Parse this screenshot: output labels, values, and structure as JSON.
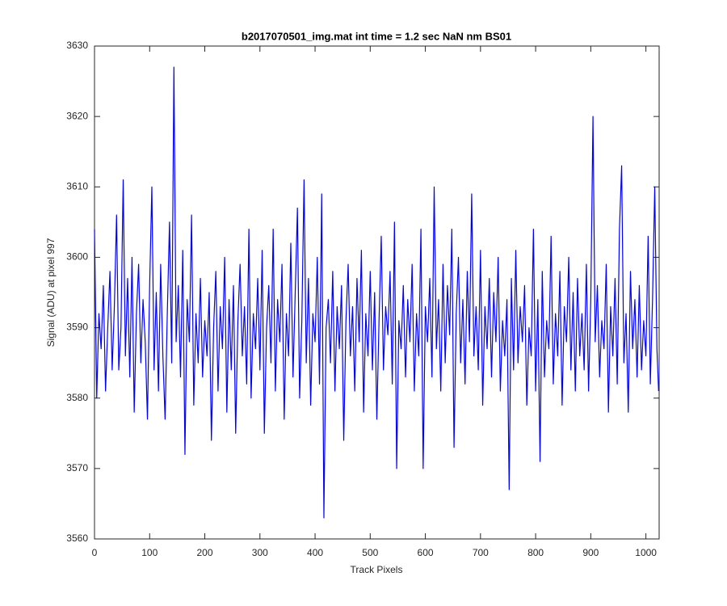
{
  "chart_data": {
    "type": "line",
    "title": "b2017070501_img.mat int time = 1.2 sec  NaN nm BS01",
    "xlabel": "Track Pixels",
    "ylabel": "Signal (ADU) at pixel 997",
    "xlim": [
      0,
      1024
    ],
    "ylim": [
      3560,
      3630
    ],
    "xticks": [
      0,
      100,
      200,
      300,
      400,
      500,
      600,
      700,
      800,
      900,
      1000
    ],
    "yticks": [
      3560,
      3570,
      3580,
      3590,
      3600,
      3610,
      3620,
      3630
    ],
    "grid": false,
    "x": [
      0,
      4,
      8,
      12,
      16,
      20,
      24,
      28,
      32,
      36,
      40,
      44,
      48,
      52,
      56,
      60,
      64,
      68,
      72,
      76,
      80,
      84,
      88,
      92,
      96,
      100,
      104,
      108,
      112,
      116,
      120,
      124,
      128,
      132,
      136,
      140,
      144,
      148,
      152,
      156,
      160,
      164,
      168,
      172,
      176,
      180,
      184,
      188,
      192,
      196,
      200,
      204,
      208,
      212,
      216,
      220,
      224,
      228,
      232,
      236,
      240,
      244,
      248,
      252,
      256,
      260,
      264,
      268,
      272,
      276,
      280,
      284,
      288,
      292,
      296,
      300,
      304,
      308,
      312,
      316,
      320,
      324,
      328,
      332,
      336,
      340,
      344,
      348,
      352,
      356,
      360,
      364,
      368,
      372,
      376,
      380,
      384,
      388,
      392,
      396,
      400,
      404,
      408,
      412,
      416,
      420,
      424,
      428,
      432,
      436,
      440,
      444,
      448,
      452,
      456,
      460,
      464,
      468,
      472,
      476,
      480,
      484,
      488,
      492,
      496,
      500,
      504,
      508,
      512,
      516,
      520,
      524,
      528,
      532,
      536,
      540,
      544,
      548,
      552,
      556,
      560,
      564,
      568,
      572,
      576,
      580,
      584,
      588,
      592,
      596,
      600,
      604,
      608,
      612,
      616,
      620,
      624,
      628,
      632,
      636,
      640,
      644,
      648,
      652,
      656,
      660,
      664,
      668,
      672,
      676,
      680,
      684,
      688,
      692,
      696,
      700,
      704,
      708,
      712,
      716,
      720,
      724,
      728,
      732,
      736,
      740,
      744,
      748,
      752,
      756,
      760,
      764,
      768,
      772,
      776,
      780,
      784,
      788,
      792,
      796,
      800,
      804,
      808,
      812,
      816,
      820,
      824,
      828,
      832,
      836,
      840,
      844,
      848,
      852,
      856,
      860,
      864,
      868,
      872,
      876,
      880,
      884,
      888,
      892,
      896,
      900,
      904,
      908,
      912,
      916,
      920,
      924,
      928,
      932,
      936,
      940,
      944,
      948,
      952,
      956,
      960,
      964,
      968,
      972,
      976,
      980,
      984,
      988,
      992,
      996,
      1000,
      1004,
      1008,
      1012,
      1016,
      1020,
      1023
    ],
    "series": [
      {
        "name": "signal",
        "color": "#0000ff",
        "values": [
          3604,
          3580,
          3592,
          3587,
          3596,
          3581,
          3590,
          3598,
          3584,
          3593,
          3606,
          3584,
          3590,
          3611,
          3586,
          3597,
          3583,
          3600,
          3578,
          3592,
          3599,
          3585,
          3594,
          3588,
          3577,
          3596,
          3610,
          3584,
          3595,
          3581,
          3599,
          3586,
          3577,
          3592,
          3605,
          3585,
          3627,
          3588,
          3596,
          3583,
          3601,
          3572,
          3594,
          3588,
          3606,
          3579,
          3592,
          3585,
          3597,
          3583,
          3591,
          3586,
          3595,
          3574,
          3590,
          3598,
          3581,
          3593,
          3587,
          3600,
          3578,
          3594,
          3584,
          3596,
          3575,
          3591,
          3599,
          3586,
          3593,
          3582,
          3604,
          3580,
          3592,
          3587,
          3597,
          3584,
          3601,
          3575,
          3590,
          3596,
          3585,
          3604,
          3581,
          3594,
          3588,
          3599,
          3577,
          3592,
          3586,
          3602,
          3583,
          3595,
          3607,
          3580,
          3591,
          3611,
          3585,
          3597,
          3579,
          3592,
          3588,
          3600,
          3582,
          3609,
          3563,
          3590,
          3594,
          3585,
          3598,
          3581,
          3593,
          3587,
          3596,
          3574,
          3591,
          3599,
          3586,
          3593,
          3581,
          3597,
          3588,
          3601,
          3578,
          3592,
          3586,
          3598,
          3584,
          3595,
          3577,
          3591,
          3603,
          3584,
          3593,
          3589,
          3598,
          3582,
          3605,
          3570,
          3591,
          3587,
          3596,
          3583,
          3594,
          3588,
          3599,
          3581,
          3592,
          3586,
          3604,
          3570,
          3593,
          3588,
          3597,
          3583,
          3610,
          3587,
          3594,
          3581,
          3599,
          3585,
          3596,
          3589,
          3604,
          3573,
          3592,
          3600,
          3585,
          3594,
          3582,
          3598,
          3588,
          3609,
          3586,
          3593,
          3584,
          3601,
          3579,
          3593,
          3587,
          3597,
          3583,
          3595,
          3588,
          3600,
          3581,
          3591,
          3586,
          3594,
          3567,
          3597,
          3584,
          3601,
          3585,
          3593,
          3588,
          3596,
          3579,
          3590,
          3586,
          3604,
          3581,
          3594,
          3571,
          3598,
          3583,
          3591,
          3587,
          3603,
          3582,
          3592,
          3586,
          3598,
          3579,
          3593,
          3588,
          3600,
          3584,
          3595,
          3581,
          3597,
          3586,
          3592,
          3584,
          3599,
          3581,
          3594,
          3620,
          3588,
          3596,
          3583,
          3591,
          3587,
          3599,
          3578,
          3593,
          3586,
          3597,
          3582,
          3604,
          3613,
          3585,
          3592,
          3578,
          3598,
          3587,
          3594,
          3583,
          3596,
          3584,
          3591,
          3586,
          3603,
          3582,
          3594,
          3610,
          3587,
          3581
        ]
      }
    ]
  }
}
